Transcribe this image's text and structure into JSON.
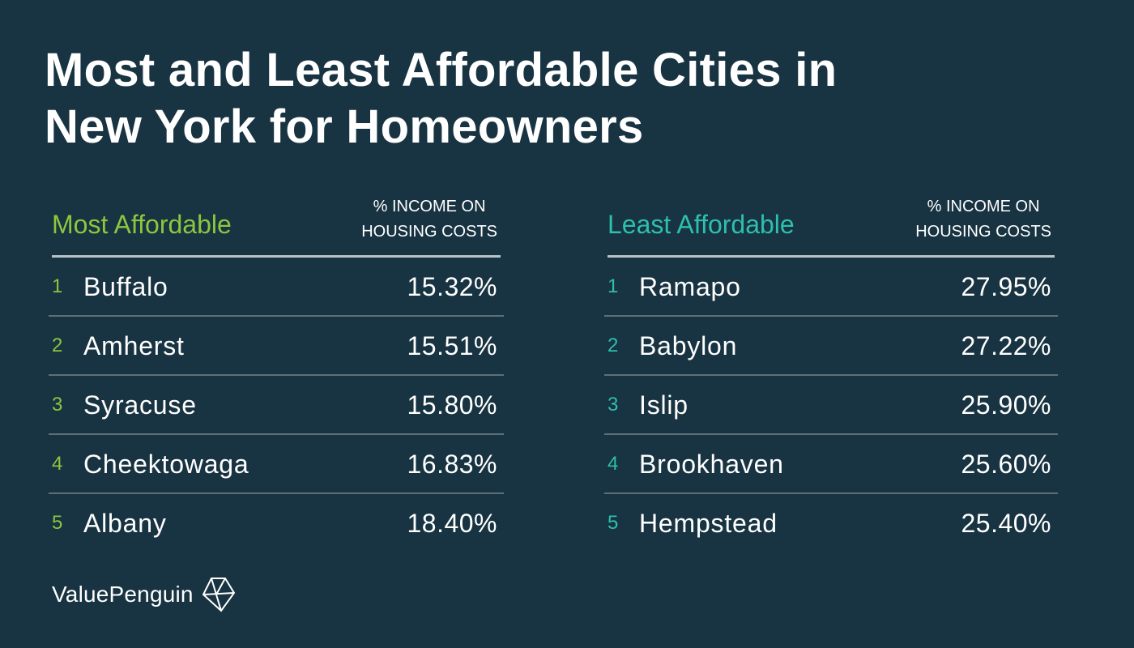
{
  "title": [
    "Most and Least Affordable Cities in",
    "New York for Homeowners"
  ],
  "column_header": [
    "% INCOME ON",
    "HOUSING COSTS"
  ],
  "brand": {
    "name": "ValuePenguin",
    "icon": "valuepenguin-logo-icon"
  },
  "colors": {
    "background": "#183341",
    "most_affordable_accent": "#8cc63f",
    "least_affordable_accent": "#2ebfad",
    "text": "#ffffff"
  },
  "chart_data": {
    "type": "table",
    "title": "Most and Least Affordable Cities in New York for Homeowners",
    "tables": [
      {
        "name": "Most Affordable",
        "value_header": "% INCOME ON HOUSING COSTS",
        "rows": [
          {
            "rank": "1",
            "city": "Buffalo",
            "value": "15.32%"
          },
          {
            "rank": "2",
            "city": "Amherst",
            "value": "15.51%"
          },
          {
            "rank": "3",
            "city": "Syracuse",
            "value": "15.80%"
          },
          {
            "rank": "4",
            "city": "Cheektowaga",
            "value": "16.83%"
          },
          {
            "rank": "5",
            "city": "Albany",
            "value": "18.40%"
          }
        ]
      },
      {
        "name": "Least Affordable",
        "value_header": "% INCOME ON HOUSING COSTS",
        "rows": [
          {
            "rank": "1",
            "city": "Ramapo",
            "value": "27.95%"
          },
          {
            "rank": "2",
            "city": "Babylon",
            "value": "27.22%"
          },
          {
            "rank": "3",
            "city": "Islip",
            "value": "25.90%"
          },
          {
            "rank": "4",
            "city": "Brookhaven",
            "value": "25.60%"
          },
          {
            "rank": "5",
            "city": "Hempstead",
            "value": "25.40%"
          }
        ]
      }
    ]
  }
}
